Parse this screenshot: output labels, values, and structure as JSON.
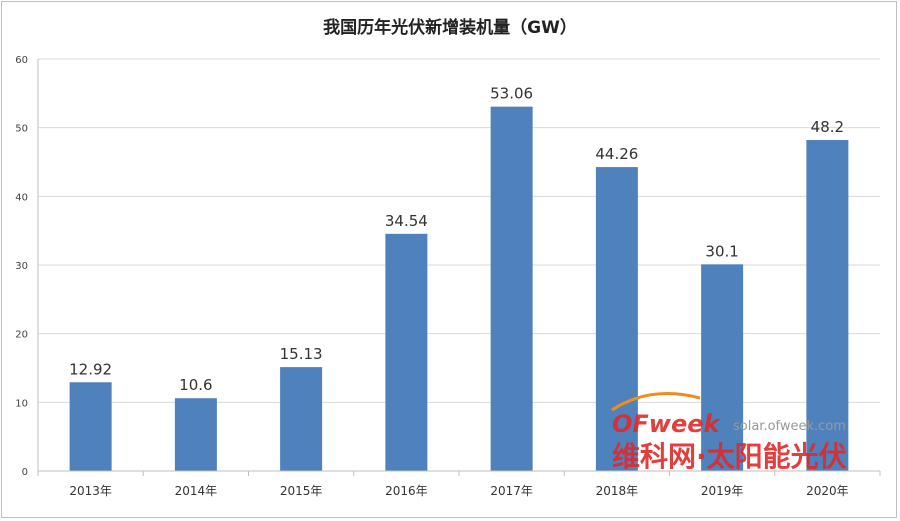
{
  "chart_data": {
    "type": "bar",
    "title": "我国历年光伏新增装机量（GW）",
    "categories": [
      "2013年",
      "2014年",
      "2015年",
      "2016年",
      "2017年",
      "2018年",
      "2019年",
      "2020年"
    ],
    "values": [
      12.92,
      10.6,
      15.13,
      34.54,
      53.06,
      44.26,
      30.1,
      48.2
    ],
    "data_labels": [
      "12.92",
      "10.6",
      "15.13",
      "34.54",
      "53.06",
      "44.26",
      "30.1",
      "48.2"
    ],
    "xlabel": "",
    "ylabel": "",
    "ylim": [
      0,
      60
    ],
    "yticks": [
      "0",
      "10",
      "20",
      "30",
      "40",
      "50",
      "60"
    ],
    "grid": true,
    "legend": "none",
    "colors": {
      "bar": "#4f81bd",
      "grid": "#d9d9d9",
      "watermark_red": "#e02a2a",
      "watermark_orange": "#f08c1e"
    }
  },
  "watermark": {
    "logo": "OFweek",
    "url": "solar.ofweek.com",
    "subtitle": "维科网·太阳能光伏"
  }
}
